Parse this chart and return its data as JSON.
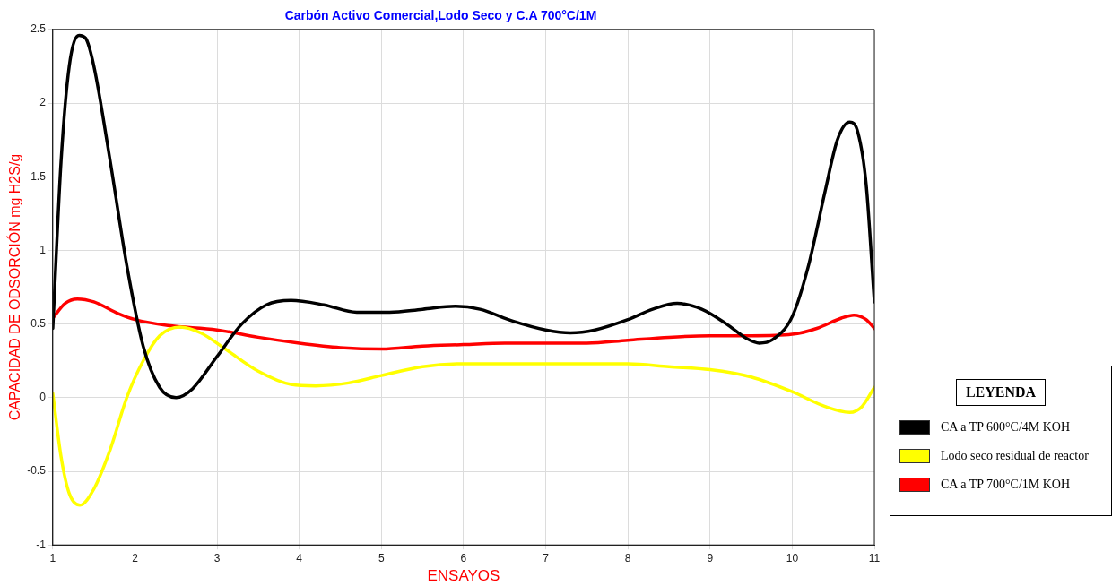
{
  "chart_data": {
    "type": "line",
    "title": "Carbón Activo Comercial,Lodo Seco y C.A 700°C/1M",
    "xlabel": "ENSAYOS",
    "ylabel": "CAPACIDAD DE ODSORCIÓN mg H2S/g",
    "legend_title": "LEYENDA",
    "legend": "bottom right",
    "grid": true,
    "marker": "none",
    "line_style": "solid",
    "xlim": [
      1,
      11
    ],
    "xticks": [
      1,
      2,
      3,
      4,
      5,
      6,
      7,
      8,
      9,
      10,
      11
    ],
    "ylim": [
      -1,
      2.5
    ],
    "yticks": [
      -1,
      -0.5,
      0,
      0.5,
      1,
      1.5,
      2,
      2.5
    ],
    "series": [
      {
        "name": "CA a TP 600°C/4M KOH",
        "color": "#000000",
        "x": [
          1,
          1.1,
          1.2,
          1.32,
          1.4,
          1.5,
          1.7,
          1.9,
          2.1,
          2.3,
          2.5,
          2.7,
          3.0,
          3.3,
          3.6,
          3.9,
          4.3,
          4.7,
          5.1,
          5.5,
          5.9,
          6.2,
          6.6,
          7.0,
          7.3,
          7.6,
          8.0,
          8.3,
          8.6,
          8.9,
          9.2,
          9.45,
          9.6,
          9.75,
          10.0,
          10.2,
          10.4,
          10.55,
          10.7,
          10.8,
          10.9,
          11
        ],
        "values": [
          0.47,
          1.6,
          2.25,
          2.46,
          2.44,
          2.25,
          1.6,
          0.9,
          0.35,
          0.07,
          0.0,
          0.06,
          0.28,
          0.5,
          0.63,
          0.66,
          0.63,
          0.58,
          0.58,
          0.6,
          0.62,
          0.6,
          0.52,
          0.46,
          0.44,
          0.46,
          0.53,
          0.6,
          0.64,
          0.6,
          0.5,
          0.4,
          0.37,
          0.39,
          0.55,
          0.9,
          1.4,
          1.75,
          1.87,
          1.8,
          1.45,
          0.65
        ]
      },
      {
        "name": "Lodo seco residual de reactor",
        "color": "#ffff00",
        "x": [
          1,
          1.1,
          1.2,
          1.33,
          1.5,
          1.7,
          1.9,
          2.1,
          2.3,
          2.55,
          2.8,
          3.1,
          3.5,
          3.9,
          4.2,
          4.6,
          5,
          5.5,
          6,
          7,
          8,
          8.5,
          9,
          9.5,
          10,
          10.4,
          10.7,
          10.85,
          11
        ],
        "values": [
          0.03,
          -0.4,
          -0.65,
          -0.73,
          -0.62,
          -0.35,
          0,
          0.25,
          0.42,
          0.48,
          0.44,
          0.33,
          0.18,
          0.09,
          0.08,
          0.1,
          0.15,
          0.21,
          0.23,
          0.23,
          0.23,
          0.21,
          0.19,
          0.14,
          0.04,
          -0.06,
          -0.1,
          -0.06,
          0.07
        ]
      },
      {
        "name": "CA a TP 700°C/1M KOH",
        "color": "#ff0000",
        "x": [
          1,
          1.15,
          1.3,
          1.5,
          1.8,
          2,
          2.4,
          3,
          3.5,
          4,
          4.5,
          5,
          5.5,
          6,
          6.5,
          7,
          7.5,
          8,
          8.5,
          9,
          9.5,
          10,
          10.3,
          10.6,
          10.75,
          10.9,
          11
        ],
        "values": [
          0.54,
          0.64,
          0.67,
          0.65,
          0.57,
          0.53,
          0.49,
          0.46,
          0.41,
          0.37,
          0.34,
          0.33,
          0.35,
          0.36,
          0.37,
          0.37,
          0.37,
          0.39,
          0.41,
          0.42,
          0.42,
          0.43,
          0.47,
          0.54,
          0.56,
          0.53,
          0.47
        ]
      }
    ]
  }
}
